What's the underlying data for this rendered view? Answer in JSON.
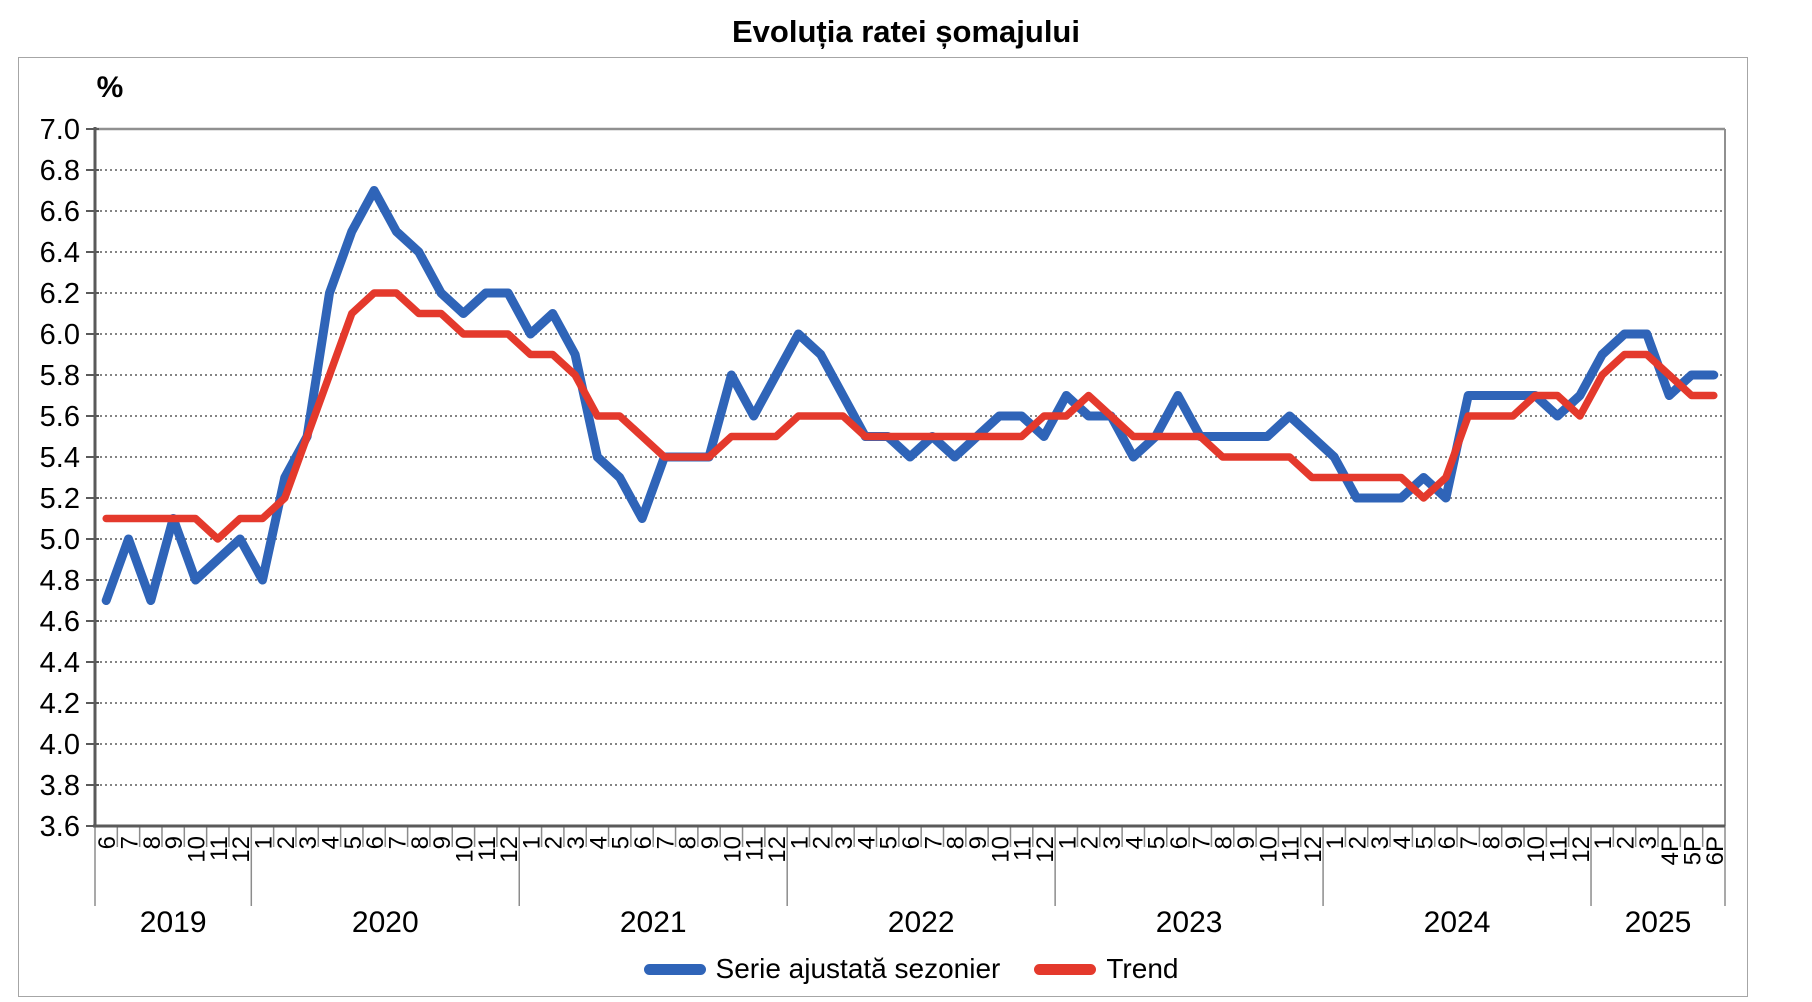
{
  "title": "Evoluția ratei șomajului",
  "y_axis_unit": "%",
  "legend": {
    "series1": "Serie ajustată sezonier",
    "series2": "Trend"
  },
  "colors": {
    "seasonally_adjusted": "#2F64B8",
    "trend": "#E4392C",
    "axis": "#5a5a5a",
    "border": "#909090",
    "grid": "#3a3a3a"
  },
  "chart_data": {
    "type": "line",
    "title": "Evoluția ratei șomajului",
    "ylabel": "%",
    "ylim": [
      3.6,
      7.0
    ],
    "y_tick_step": 0.2,
    "grid": "horizontal dotted",
    "legend_position": "bottom center",
    "x_labels": [
      "6",
      "7",
      "8",
      "9",
      "10",
      "11",
      "12",
      "1",
      "2",
      "3",
      "4",
      "5",
      "6",
      "7",
      "8",
      "9",
      "10",
      "11",
      "12",
      "1",
      "2",
      "3",
      "4",
      "5",
      "6",
      "7",
      "8",
      "9",
      "10",
      "11",
      "12",
      "1",
      "2",
      "3",
      "4",
      "5",
      "6",
      "7",
      "8",
      "9",
      "10",
      "11",
      "12",
      "1",
      "2",
      "3",
      "4",
      "5",
      "6",
      "7",
      "8",
      "9",
      "10",
      "11",
      "12",
      "1",
      "2",
      "3",
      "4",
      "5",
      "6",
      "7",
      "8",
      "9",
      "10",
      "11",
      "12",
      "1",
      "2",
      "3",
      "4P",
      "5P",
      "6P"
    ],
    "year_groups": [
      {
        "label": "2019",
        "count": 7
      },
      {
        "label": "2020",
        "count": 12
      },
      {
        "label": "2021",
        "count": 12
      },
      {
        "label": "2022",
        "count": 12
      },
      {
        "label": "2023",
        "count": 12
      },
      {
        "label": "2024",
        "count": 12
      },
      {
        "label": "2025",
        "count": 6
      }
    ],
    "series": [
      {
        "name": "Serie ajustată sezonier",
        "color": "#2F64B8",
        "values": [
          4.7,
          5.0,
          4.7,
          5.1,
          4.8,
          4.9,
          5.0,
          4.8,
          5.3,
          5.5,
          6.2,
          6.5,
          6.7,
          6.5,
          6.4,
          6.2,
          6.1,
          6.2,
          6.2,
          6.0,
          6.1,
          5.9,
          5.4,
          5.3,
          5.1,
          5.4,
          5.4,
          5.4,
          5.8,
          5.6,
          5.8,
          6.0,
          5.9,
          5.7,
          5.5,
          5.5,
          5.4,
          5.5,
          5.4,
          5.5,
          5.6,
          5.6,
          5.5,
          5.7,
          5.6,
          5.6,
          5.4,
          5.5,
          5.7,
          5.5,
          5.5,
          5.5,
          5.5,
          5.6,
          5.5,
          5.4,
          5.2,
          5.2,
          5.2,
          5.3,
          5.2,
          5.7,
          5.7,
          5.7,
          5.7,
          5.6,
          5.7,
          5.9,
          6.0,
          6.0,
          5.7,
          5.8,
          5.8
        ]
      },
      {
        "name": "Trend",
        "color": "#E4392C",
        "values": [
          5.1,
          5.1,
          5.1,
          5.1,
          5.1,
          5.0,
          5.1,
          5.1,
          5.2,
          5.5,
          5.8,
          6.1,
          6.2,
          6.2,
          6.1,
          6.1,
          6.0,
          6.0,
          6.0,
          5.9,
          5.9,
          5.8,
          5.6,
          5.6,
          5.5,
          5.4,
          5.4,
          5.4,
          5.5,
          5.5,
          5.5,
          5.6,
          5.6,
          5.6,
          5.5,
          5.5,
          5.5,
          5.5,
          5.5,
          5.5,
          5.5,
          5.5,
          5.6,
          5.6,
          5.7,
          5.6,
          5.5,
          5.5,
          5.5,
          5.5,
          5.4,
          5.4,
          5.4,
          5.4,
          5.3,
          5.3,
          5.3,
          5.3,
          5.3,
          5.2,
          5.3,
          5.6,
          5.6,
          5.6,
          5.7,
          5.7,
          5.6,
          5.8,
          5.9,
          5.9,
          5.8,
          5.7,
          5.7
        ]
      }
    ]
  }
}
